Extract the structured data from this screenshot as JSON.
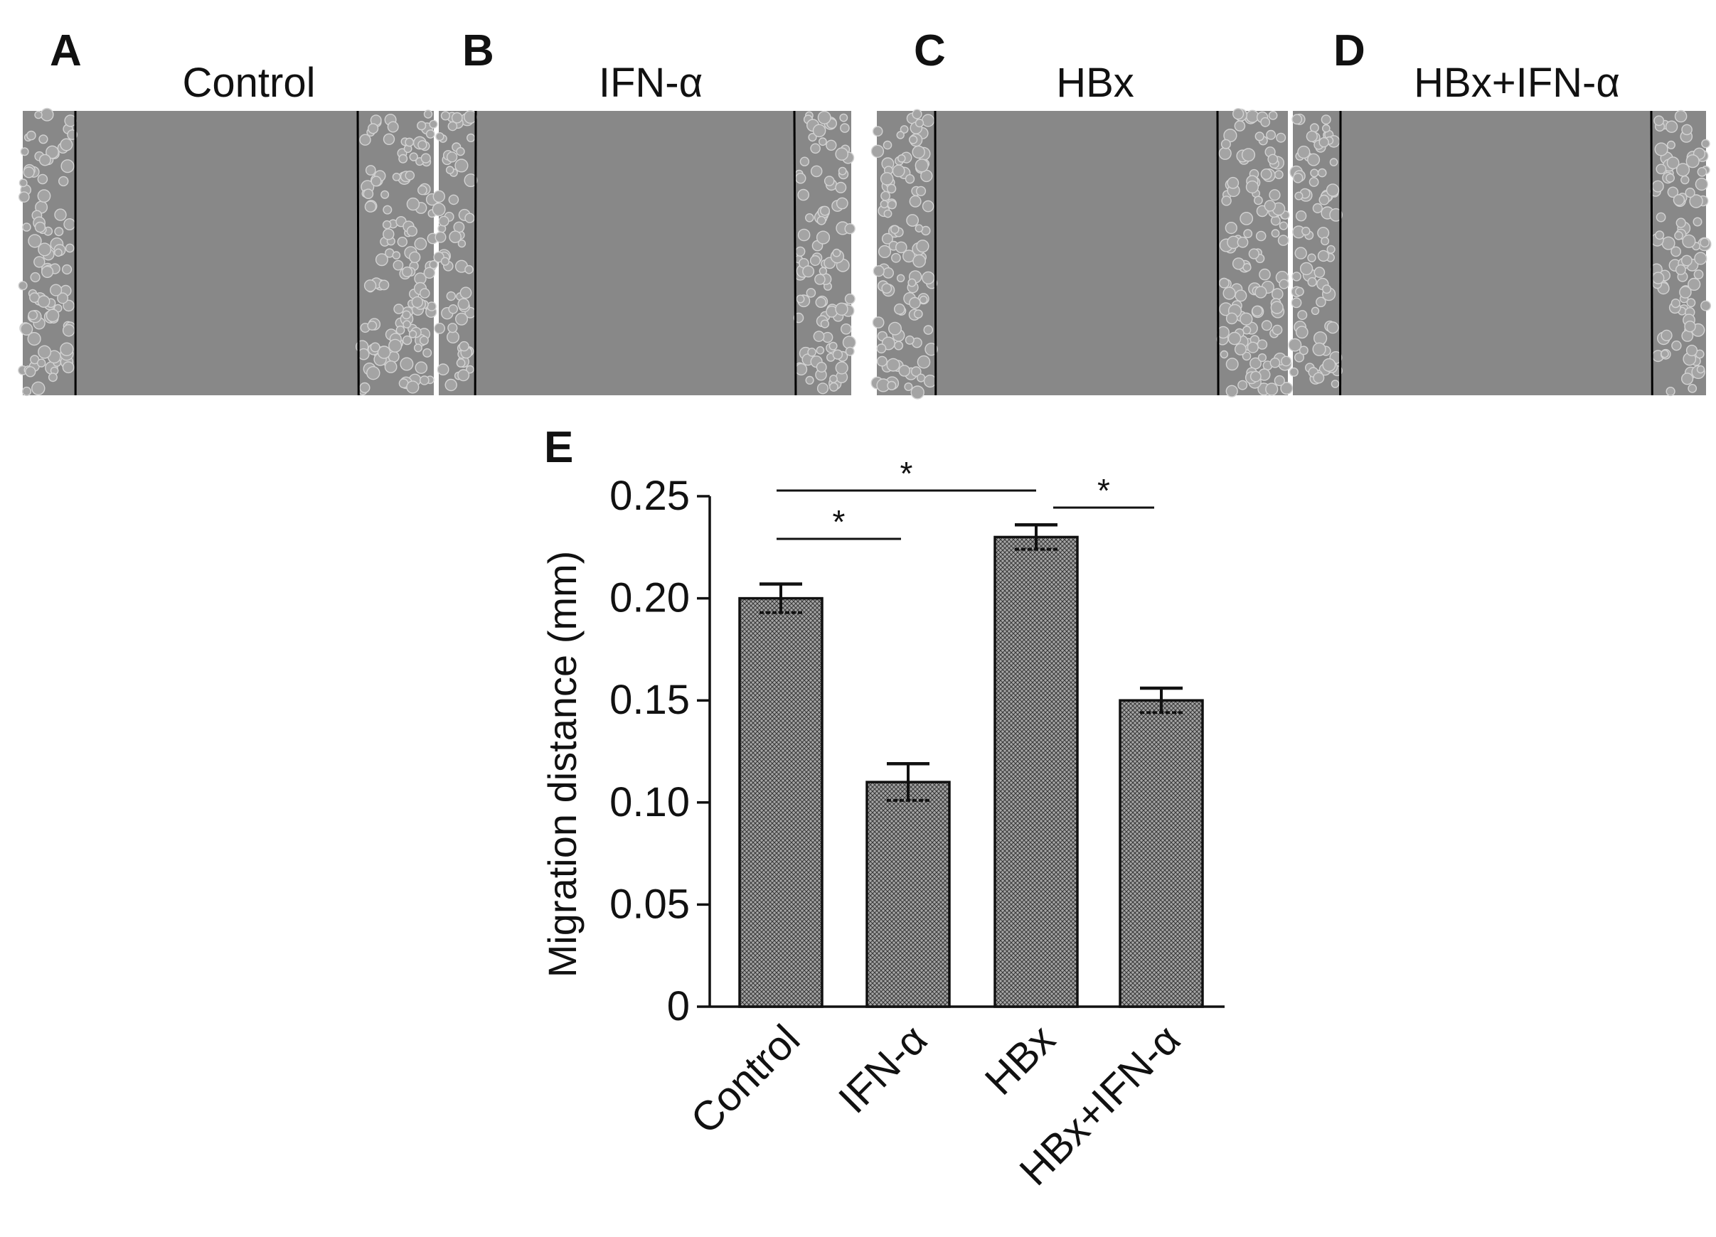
{
  "panels": [
    {
      "letter": "A",
      "title": "Control"
    },
    {
      "letter": "B",
      "title": "IFN-α"
    },
    {
      "letter": "C",
      "title": "HBx"
    },
    {
      "letter": "D",
      "title": "HBx+IFN-α"
    }
  ],
  "chart_panel_letter": "E",
  "colors": {
    "micrograph_bg": "#888888",
    "cell_fill": "#a4a4a4",
    "cell_edge": "#d2d2d2",
    "bar_fill": "#a6a6a6",
    "ink": "#111111"
  },
  "chart_data": {
    "type": "bar",
    "title": "",
    "xlabel": "",
    "ylabel": "Migration distance (mm)",
    "ylim": [
      0,
      0.25
    ],
    "yticks": [
      "0",
      "0.05",
      "0.10",
      "0.15",
      "0.20",
      "0.25"
    ],
    "categories": [
      "Control",
      "IFN-α",
      "HBx",
      "HBx+IFN-α"
    ],
    "values": [
      0.2,
      0.11,
      0.23,
      0.15
    ],
    "errors": [
      0.007,
      0.009,
      0.006,
      0.006
    ],
    "significance": [
      {
        "from": 0,
        "to": 1,
        "label": "*"
      },
      {
        "from": 0,
        "to": 2,
        "label": "*"
      },
      {
        "from": 2,
        "to": 3,
        "label": "*"
      }
    ]
  }
}
